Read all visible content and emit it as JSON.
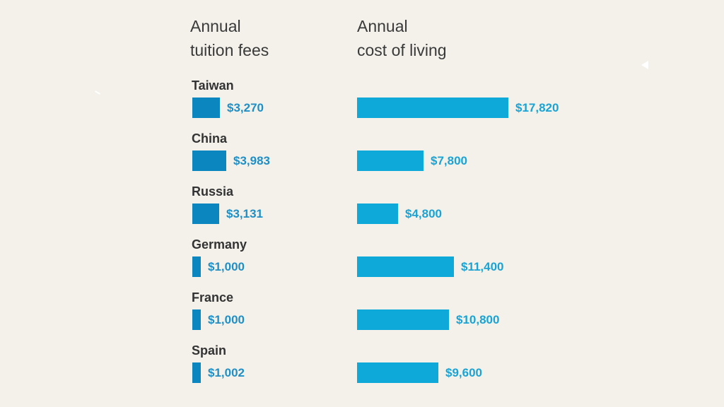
{
  "chart_data": {
    "type": "bar",
    "orientation": "horizontal",
    "categories": [
      "Taiwan",
      "China",
      "Russia",
      "Germany",
      "France",
      "Spain"
    ],
    "series": [
      {
        "name": "Annual tuition fees",
        "header": "Annual\ntuition fees",
        "values": [
          3270,
          3983,
          3131,
          1000,
          1000,
          1002
        ],
        "labels": [
          "$3,270",
          "$3,983",
          "$3,131",
          "$1,000",
          "$1,000",
          "$1,002"
        ],
        "color": "#0b86bf"
      },
      {
        "name": "Annual cost of living",
        "header": "Annual\ncost of living",
        "values": [
          17820,
          7800,
          4800,
          11400,
          10800,
          9600
        ],
        "labels": [
          "$17,820",
          "$7,800",
          "$4,800",
          "$11,400",
          "$10,800",
          "$9,600"
        ],
        "color": "#0ea9d9"
      }
    ],
    "colors": {
      "background": "#f3f1ea",
      "header_text": "#3a3a3a",
      "country_text": "#333333",
      "tuition_label": "#1f8fc6",
      "living_label": "#1aa3d4"
    },
    "grid": false,
    "legend": "none"
  }
}
